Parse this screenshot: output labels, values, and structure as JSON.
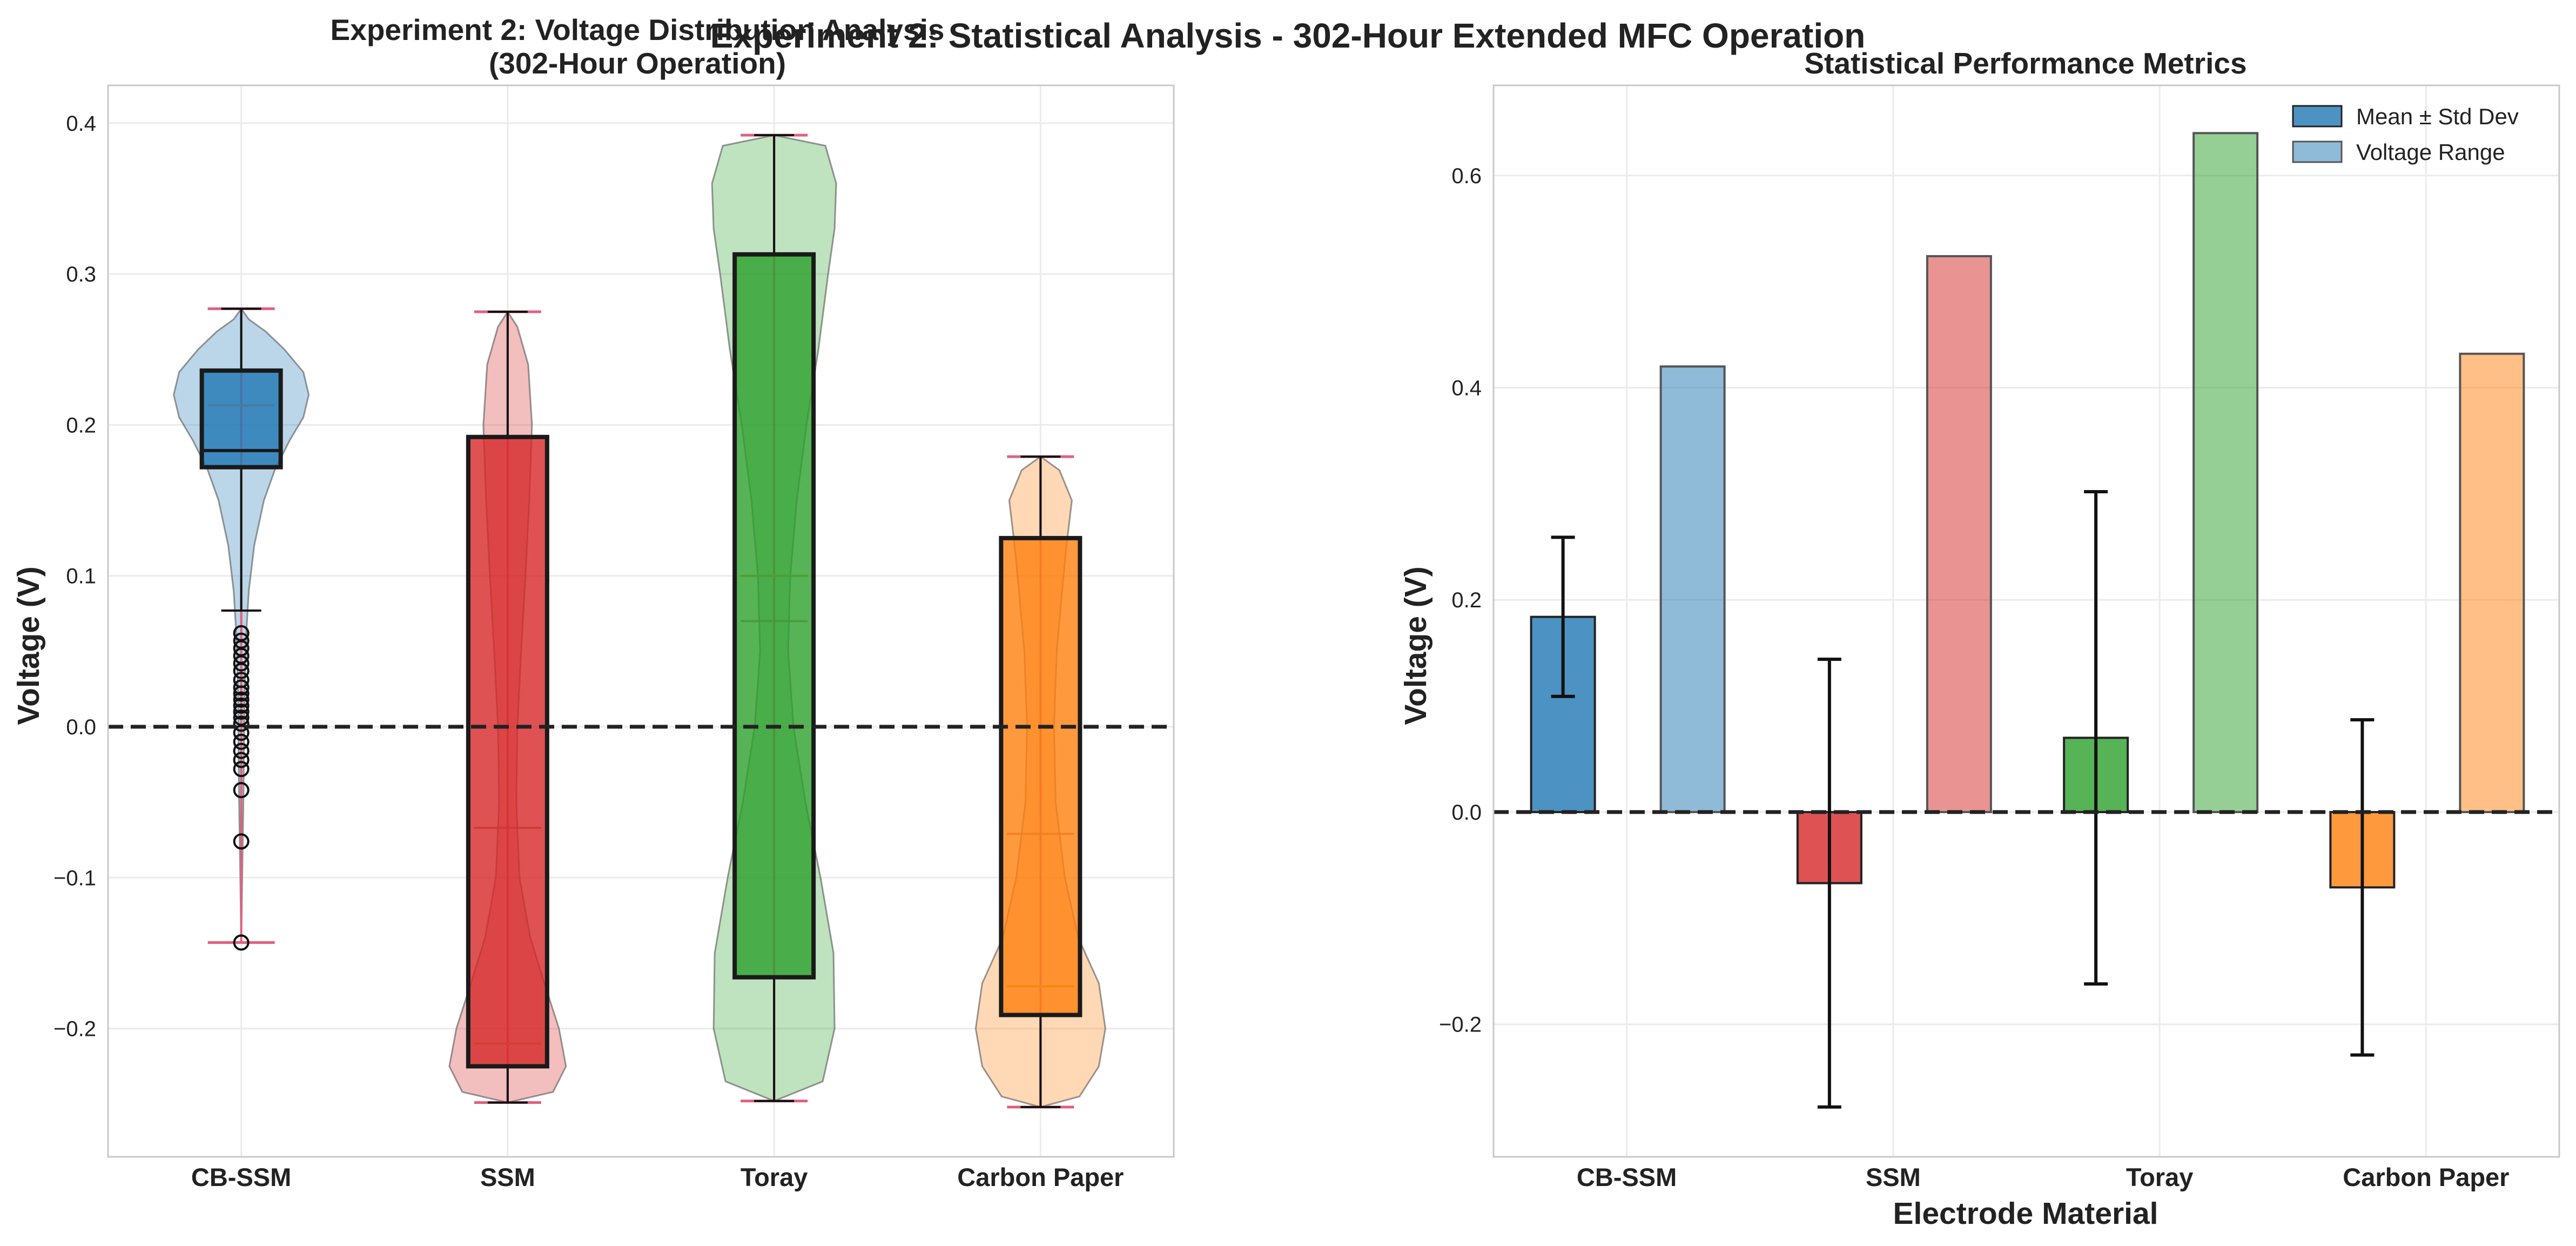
{
  "figure_title": "Experiment 2: Statistical Analysis - 302-Hour Extended MFC Operation",
  "colors": {
    "CB-SSM": "#1f77b4",
    "SSM": "#d62728",
    "Toray": "#2ca02c",
    "Carbon Paper": "#ff7f0e",
    "grid": "#ebebeb",
    "zero_line": "#222222",
    "whisker_cap_pink": "#e0607e"
  },
  "chart_data": [
    {
      "type": "violin-box",
      "title": "Experiment 2: Voltage Distribution Analysis\n(302-Hour Operation)",
      "title_lines": [
        "Experiment 2: Voltage Distribution Analysis",
        "(302-Hour Operation)"
      ],
      "ylabel": "Voltage (V)",
      "xlabel": "",
      "ylim": [
        -0.285,
        0.425
      ],
      "yticks": [
        -0.2,
        -0.1,
        0.0,
        0.1,
        0.2,
        0.3,
        0.4
      ],
      "ytick_labels": [
        "−0.2",
        "−0.1",
        "0.0",
        "0.1",
        "0.2",
        "0.3",
        "0.4"
      ],
      "categories": [
        "CB-SSM",
        "SSM",
        "Toray",
        "Carbon Paper"
      ],
      "zero_reference_line": 0.0,
      "grid": true,
      "boxes": [
        {
          "name": "CB-SSM",
          "q1": 0.172,
          "median": 0.183,
          "q3": 0.236,
          "whisker_low": 0.077,
          "whisker_high": 0.277,
          "min": -0.143,
          "max": 0.277,
          "violin_median": 0.213,
          "violin_mean": 0.183,
          "outliers": [
            0.062,
            0.057,
            0.052,
            0.047,
            0.042,
            0.037,
            0.031,
            0.026,
            0.022,
            0.018,
            0.014,
            0.01,
            0.006,
            0.002,
            -0.004,
            -0.01,
            -0.016,
            -0.022,
            -0.028,
            -0.042,
            -0.076,
            -0.143
          ]
        },
        {
          "name": "SSM",
          "q1": -0.225,
          "median": -0.225,
          "q3": 0.192,
          "whisker_low": -0.249,
          "whisker_high": 0.275,
          "min": -0.249,
          "max": 0.275,
          "violin_median": -0.21,
          "violin_mean": -0.067,
          "outliers": []
        },
        {
          "name": "Toray",
          "q1": -0.166,
          "median": -0.166,
          "q3": 0.313,
          "whisker_low": -0.248,
          "whisker_high": 0.392,
          "min": -0.248,
          "max": 0.392,
          "violin_median": 0.1,
          "violin_mean": 0.07,
          "outliers": []
        },
        {
          "name": "Carbon Paper",
          "q1": -0.191,
          "median": -0.191,
          "q3": 0.125,
          "whisker_low": -0.252,
          "whisker_high": 0.179,
          "min": -0.252,
          "max": 0.179,
          "violin_median": -0.172,
          "violin_mean": -0.071,
          "outliers": []
        }
      ]
    },
    {
      "type": "bar",
      "title": "Statistical Performance Metrics",
      "ylabel": "Voltage (V)",
      "xlabel": "Electrode Material",
      "ylim": [
        -0.325,
        0.685
      ],
      "yticks": [
        -0.2,
        0.0,
        0.2,
        0.4,
        0.6
      ],
      "ytick_labels": [
        "−0.2",
        "0.0",
        "0.2",
        "0.4",
        "0.6"
      ],
      "categories": [
        "CB-SSM",
        "SSM",
        "Toray",
        "Carbon Paper"
      ],
      "zero_reference_line": 0.0,
      "grid": true,
      "legend_position": "top-right",
      "series": [
        {
          "name": "Mean ± Std Dev",
          "values": [
            0.184,
            -0.067,
            0.07,
            -0.071
          ],
          "std": [
            0.075,
            0.211,
            0.232,
            0.158
          ]
        },
        {
          "name": "Voltage Range",
          "values": [
            0.42,
            0.524,
            0.64,
            0.432
          ]
        }
      ]
    }
  ]
}
